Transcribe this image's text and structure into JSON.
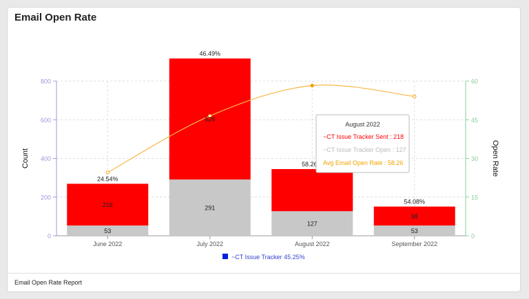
{
  "card": {
    "title": "Email Open Rate",
    "footer": "Email Open Rate Report"
  },
  "colors": {
    "sent": "#ff0000",
    "open": "#c8c8c8",
    "rate_line": "#f7b84b",
    "rate_point": "#f0a400",
    "left_axis": "#9999dd",
    "right_axis": "#88cc99",
    "legend_marker": "#0022dd",
    "legend_text": "#3344cc",
    "grid": "#dddddd"
  },
  "chart_data": {
    "type": "bar",
    "categories": [
      "June 2022",
      "July 2022",
      "August 2022",
      "September 2022"
    ],
    "series": [
      {
        "name": "~CT Issue Tracker Open",
        "kind": "bar",
        "stack": "email",
        "values": [
          53,
          291,
          127,
          53
        ]
      },
      {
        "name": "~CT Issue Tracker Sent",
        "kind": "bar",
        "stack": "email",
        "values": [
          216,
          626,
          218,
          98
        ]
      },
      {
        "name": "Avg Email Open Rate",
        "kind": "line",
        "axis": "right",
        "values": [
          24.54,
          46.49,
          58.26,
          54.08
        ]
      }
    ],
    "bar_labels": {
      "open": [
        "53",
        "291",
        "127",
        "53"
      ],
      "sent": [
        "216",
        "626",
        "",
        "98"
      ]
    },
    "rate_labels": [
      "24.54%",
      "46.49%",
      "58.26%",
      "54.08%"
    ],
    "xlabel": "",
    "ylabel": "Count",
    "y2label": "Open Rate",
    "ylim": [
      0,
      800
    ],
    "yticks": [
      0,
      200,
      400,
      600,
      800
    ],
    "y2lim": [
      0,
      60
    ],
    "y2ticks": [
      0,
      15,
      30,
      45,
      60
    ],
    "grid": true,
    "legend": {
      "placement": "bottom",
      "entries": [
        "~CT Issue Tracker  45.25%"
      ]
    },
    "tooltip": {
      "title": "August 2022",
      "lines": [
        {
          "text": "~CT Issue Tracker Sent : 218",
          "color": "#ff0000"
        },
        {
          "text": "~CT Issue Tracker Open : 127",
          "color": "#bbbbbb"
        },
        {
          "text": "Avg Email Open Rate : 58.26",
          "color": "#f0a400"
        }
      ]
    }
  }
}
